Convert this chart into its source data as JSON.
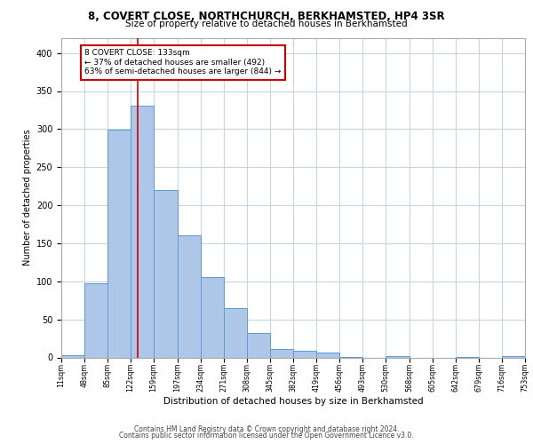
{
  "title1": "8, COVERT CLOSE, NORTHCHURCH, BERKHAMSTED, HP4 3SR",
  "title2": "Size of property relative to detached houses in Berkhamsted",
  "xlabel": "Distribution of detached houses by size in Berkhamsted",
  "ylabel": "Number of detached properties",
  "footer1": "Contains HM Land Registry data © Crown copyright and database right 2024.",
  "footer2": "Contains public sector information licensed under the Open Government Licence v3.0.",
  "annotation_line1": "8 COVERT CLOSE: 133sqm",
  "annotation_line2": "← 37% of detached houses are smaller (492)",
  "annotation_line3": "63% of semi-detached houses are larger (844) →",
  "property_size": 133,
  "bin_edges": [
    11,
    48,
    85,
    122,
    159,
    197,
    234,
    271,
    308,
    345,
    382,
    419,
    456,
    493,
    530,
    568,
    605,
    642,
    679,
    716,
    753
  ],
  "bar_heights": [
    3,
    98,
    299,
    331,
    220,
    160,
    106,
    65,
    32,
    11,
    9,
    7,
    1,
    0,
    2,
    0,
    0,
    1,
    0,
    2
  ],
  "bar_color": "#aec6e8",
  "bar_edge_color": "#5b9bd5",
  "vline_color": "#cc0000",
  "background_color": "#ffffff",
  "grid_color": "#c8d4e8",
  "annotation_box_edge_color": "#cc0000",
  "ylim": [
    0,
    420
  ],
  "yticks": [
    0,
    50,
    100,
    150,
    200,
    250,
    300,
    350,
    400
  ],
  "title1_fontsize": 8.5,
  "title2_fontsize": 7.5,
  "ylabel_fontsize": 7.0,
  "xlabel_fontsize": 7.5,
  "footer_fontsize": 5.5,
  "ytick_fontsize": 7.0,
  "xtick_fontsize": 5.8,
  "ann_fontsize": 6.5
}
